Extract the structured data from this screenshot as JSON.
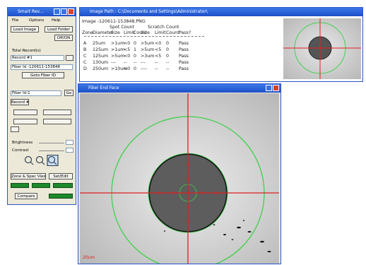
{
  "left_panel": {
    "title": "Smart Rev...",
    "menu": [
      "File",
      "Options",
      "Help"
    ],
    "buttons": {
      "load_image": "Load Image",
      "load_folder": "Load Folder",
      "off_on": "Off/ON",
      "goto": "Goto Fiber ID",
      "go": "Go",
      "record": "Record #",
      "zone_spec": "Zone & Spec View",
      "set_edit": "Set/Edit",
      "compare": "Compare"
    },
    "labels": {
      "total": "Total Record(s)",
      "record": "Record #1",
      "fiber_id": "Fiber Id -120611-153848",
      "fiber_id2": "Fiber Id:1",
      "brightness": "Brightness",
      "contrast": "Contrast"
    }
  },
  "report": {
    "title": "Image Path : C:\\Documents and Settings\\Administrator\\",
    "image": "Image -120611-153848.PNG",
    "group_header": [
      "Spot Count",
      "Scratch Count"
    ],
    "columns": [
      "Zone",
      "Diameter",
      "Size",
      "Limit",
      "Count",
      "Size",
      "Limit",
      "Count",
      "Pass?"
    ],
    "rows": [
      [
        "A",
        "25um",
        ">1um",
        "<0",
        "0",
        ">5um",
        "<0",
        "0",
        "Pass"
      ],
      [
        "B",
        "125um",
        ">1um",
        "<5",
        "1",
        ">5um",
        "<5",
        "0",
        "Pass"
      ],
      [
        "C",
        "125um",
        ">5um",
        "<0",
        "0",
        ">3um",
        "<5",
        "0",
        "Pass"
      ],
      [
        "C",
        "130um",
        "---",
        "--",
        "--",
        "---",
        "--",
        "--",
        "Pass"
      ],
      [
        "D",
        "250um",
        ">10um",
        "<0",
        "0",
        "----",
        "--",
        "--",
        "Pass"
      ]
    ]
  },
  "viewer": {
    "title": "Fiber End Face",
    "scale": "20um"
  }
}
